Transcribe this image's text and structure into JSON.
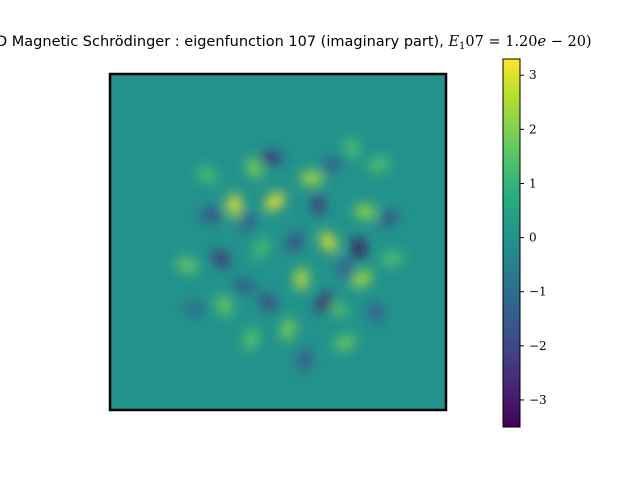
{
  "title": {
    "prefix": "D Magnetic Schrödinger : eigenfunction 107 (imaginary part), ",
    "math_symbol": "E",
    "math_sub": "1",
    "math_rest": "07 = 1.20",
    "math_e": "e",
    "math_tail": " − 20)"
  },
  "chart_data": {
    "type": "heatmap",
    "description_of_field": "imaginary part of eigenfunction 107",
    "colormap": "viridis",
    "colorbar": {
      "vmin": -3.5,
      "vmax": 3.3,
      "ticks": [
        3,
        2,
        1,
        0,
        -1,
        -2,
        -3
      ],
      "tick_labels": [
        "3",
        "2",
        "1",
        "0",
        "−1",
        "−2",
        "−3"
      ]
    },
    "axes": {
      "x_ticks": [],
      "y_ticks": [],
      "frame": true
    },
    "background_value": 0,
    "peaks": [
      {
        "x": 0.37,
        "y": 0.39,
        "v": 3.2
      },
      {
        "x": 0.49,
        "y": 0.38,
        "v": 3.3
      },
      {
        "x": 0.6,
        "y": 0.31,
        "v": 2.6
      },
      {
        "x": 0.65,
        "y": 0.5,
        "v": 3.1
      },
      {
        "x": 0.57,
        "y": 0.61,
        "v": 2.8
      },
      {
        "x": 0.75,
        "y": 0.61,
        "v": 2.5
      },
      {
        "x": 0.76,
        "y": 0.41,
        "v": 2.3
      },
      {
        "x": 0.43,
        "y": 0.28,
        "v": 2.0
      },
      {
        "x": 0.53,
        "y": 0.76,
        "v": 2.0
      },
      {
        "x": 0.7,
        "y": 0.8,
        "v": 1.8
      },
      {
        "x": 0.23,
        "y": 0.57,
        "v": 1.8
      },
      {
        "x": 0.34,
        "y": 0.69,
        "v": 1.8
      },
      {
        "x": 0.42,
        "y": 0.79,
        "v": 1.6
      },
      {
        "x": 0.8,
        "y": 0.27,
        "v": 1.5
      },
      {
        "x": 0.29,
        "y": 0.3,
        "v": 1.4
      },
      {
        "x": 0.72,
        "y": 0.22,
        "v": 1.4
      },
      {
        "x": 0.45,
        "y": 0.52,
        "v": 1.3
      },
      {
        "x": 0.84,
        "y": 0.55,
        "v": 1.5
      },
      {
        "x": 0.68,
        "y": 0.7,
        "v": 1.4
      },
      {
        "x": 0.74,
        "y": 0.52,
        "v": -3.3
      },
      {
        "x": 0.64,
        "y": 0.68,
        "v": -3.0
      },
      {
        "x": 0.48,
        "y": 0.25,
        "v": -2.6
      },
      {
        "x": 0.33,
        "y": 0.55,
        "v": -2.4
      },
      {
        "x": 0.62,
        "y": 0.39,
        "v": -2.3
      },
      {
        "x": 0.55,
        "y": 0.5,
        "v": -2.0
      },
      {
        "x": 0.3,
        "y": 0.42,
        "v": -2.0
      },
      {
        "x": 0.47,
        "y": 0.68,
        "v": -2.0
      },
      {
        "x": 0.58,
        "y": 0.85,
        "v": -1.8
      },
      {
        "x": 0.83,
        "y": 0.43,
        "v": -1.8
      },
      {
        "x": 0.4,
        "y": 0.63,
        "v": -1.7
      },
      {
        "x": 0.79,
        "y": 0.71,
        "v": -1.6
      },
      {
        "x": 0.41,
        "y": 0.44,
        "v": -1.6
      },
      {
        "x": 0.66,
        "y": 0.27,
        "v": -1.5
      },
      {
        "x": 0.25,
        "y": 0.7,
        "v": -1.3
      },
      {
        "x": 0.7,
        "y": 0.58,
        "v": -1.5
      }
    ]
  }
}
